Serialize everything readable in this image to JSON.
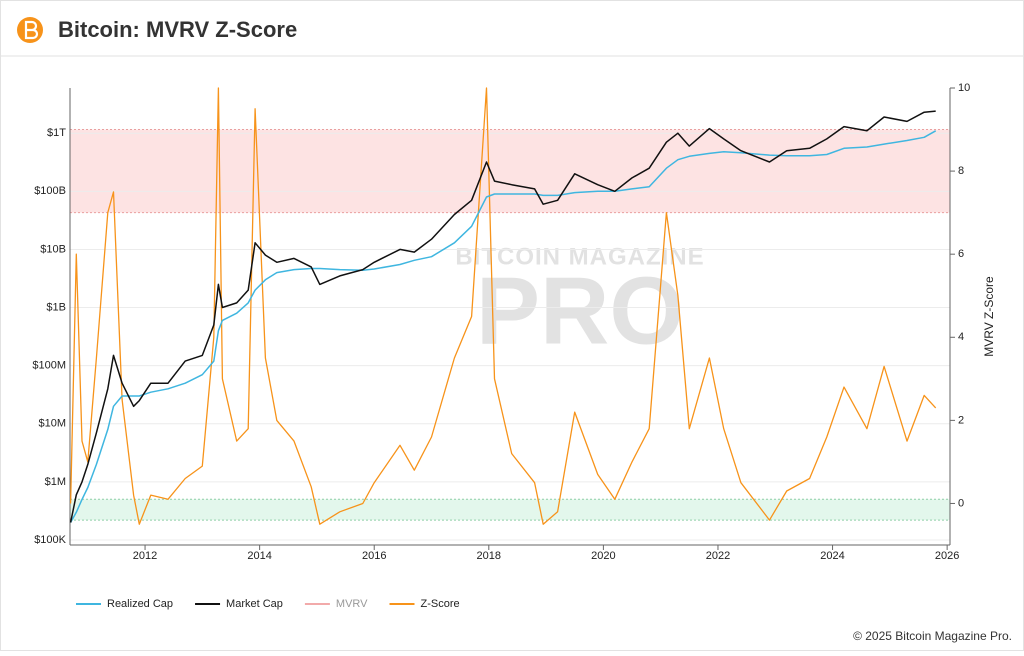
{
  "header": {
    "title": "Bitcoin: MVRV Z-Score"
  },
  "chart_data": {
    "type": "line",
    "x": [
      2010.7,
      2010.8,
      2010.9,
      2011.0,
      2011.15,
      2011.35,
      2011.45,
      2011.6,
      2011.8,
      2011.9,
      2012.1,
      2012.4,
      2012.7,
      2013.0,
      2013.2,
      2013.28,
      2013.35,
      2013.6,
      2013.8,
      2013.92,
      2014.1,
      2014.3,
      2014.6,
      2014.9,
      2015.05,
      2015.4,
      2015.8,
      2016.0,
      2016.45,
      2016.7,
      2017.0,
      2017.4,
      2017.7,
      2017.96,
      2018.1,
      2018.4,
      2018.8,
      2018.95,
      2019.2,
      2019.5,
      2019.9,
      2020.2,
      2020.5,
      2020.8,
      2021.1,
      2021.3,
      2021.5,
      2021.85,
      2022.1,
      2022.4,
      2022.9,
      2023.2,
      2023.6,
      2023.9,
      2024.2,
      2024.6,
      2024.9,
      2025.3,
      2025.6,
      2025.8
    ],
    "series": [
      {
        "name": "Realized Cap",
        "color": "#3fb6e0",
        "values": [
          200000.0,
          300000.0,
          500000.0,
          800000.0,
          2000000.0,
          8000000.0,
          20000000.0,
          30000000.0,
          30000000.0,
          30000000.0,
          35000000.0,
          40000000.0,
          50000000.0,
          70000000.0,
          120000000.0,
          400000000.0,
          600000000.0,
          800000000.0,
          1200000000.0,
          2000000000.0,
          3000000000.0,
          4000000000.0,
          4500000000.0,
          4700000000.0,
          4700000000.0,
          4500000000.0,
          4400000000.0,
          4600000000.0,
          5500000000.0,
          6500000000.0,
          7500000000.0,
          13000000000.0,
          25000000000.0,
          80000000000.0,
          90000000000.0,
          90000000000.0,
          90000000000.0,
          85000000000.0,
          85000000000.0,
          95000000000.0,
          100000000000.0,
          100000000000.0,
          110000000000.0,
          120000000000.0,
          250000000000.0,
          350000000000.0,
          400000000000.0,
          450000000000.0,
          480000000000.0,
          460000000000.0,
          420000000000.0,
          410000000000.0,
          410000000000.0,
          430000000000.0,
          550000000000.0,
          580000000000.0,
          650000000000.0,
          750000000000.0,
          850000000000.0,
          1100000000000.0
        ]
      },
      {
        "name": "Market Cap",
        "color": "#111111",
        "values": [
          200000.0,
          600000.0,
          1000000.0,
          2000000.0,
          7000000.0,
          40000000.0,
          150000000.0,
          50000000.0,
          20000000.0,
          25000000.0,
          50000000.0,
          50000000.0,
          120000000.0,
          150000000.0,
          500000000.0,
          2500000000.0,
          1000000000.0,
          1200000000.0,
          2000000000.0,
          13000000000.0,
          8000000000.0,
          6000000000.0,
          7000000000.0,
          5000000000.0,
          2500000000.0,
          3500000000.0,
          4500000000.0,
          6000000000.0,
          10000000000.0,
          9000000000.0,
          15000000000.0,
          40000000000.0,
          70000000000.0,
          320000000000.0,
          150000000000.0,
          130000000000.0,
          110000000000.0,
          60000000000.0,
          70000000000.0,
          200000000000.0,
          130000000000.0,
          100000000000.0,
          170000000000.0,
          250000000000.0,
          700000000000.0,
          1000000000000.0,
          600000000000.0,
          1200000000000.0,
          800000000000.0,
          500000000000.0,
          320000000000.0,
          500000000000.0,
          550000000000.0,
          800000000000.0,
          1300000000000.0,
          1100000000000.0,
          1900000000000.0,
          1600000000000.0,
          2300000000000.0,
          2400000000000.0
        ]
      },
      {
        "name": "MVRV",
        "color": "#f2aaaa",
        "hidden": true,
        "values": [
          null,
          null,
          null,
          null,
          null,
          null,
          null,
          null,
          null,
          null,
          null,
          null,
          null,
          null,
          null,
          null,
          null,
          null,
          null,
          null,
          null,
          null,
          null,
          null,
          null,
          null,
          null,
          null,
          null,
          null,
          null,
          null,
          null,
          null,
          null,
          null,
          null,
          null,
          null,
          null,
          null,
          null,
          null,
          null,
          null,
          null,
          null,
          null,
          null,
          null,
          null,
          null,
          null,
          null,
          null,
          null,
          null,
          null,
          null,
          null
        ]
      },
      {
        "name": "Z-Score",
        "color": "#f7931a",
        "axis": "y2",
        "values": [
          0,
          6,
          1.5,
          1.0,
          3.5,
          7,
          7.5,
          2.5,
          0.2,
          -0.5,
          0.2,
          0.1,
          0.6,
          0.9,
          4,
          10,
          3,
          1.5,
          1.8,
          9.5,
          3.5,
          2,
          1.5,
          0.4,
          -0.5,
          -0.2,
          0,
          0.5,
          1.4,
          0.8,
          1.6,
          3.5,
          4.5,
          10,
          3,
          1.2,
          0.5,
          -0.5,
          -0.2,
          2.2,
          0.7,
          0.1,
          1.0,
          1.8,
          7,
          5,
          1.8,
          3.5,
          1.8,
          0.5,
          -0.4,
          0.3,
          0.6,
          1.6,
          2.8,
          1.8,
          3.3,
          1.5,
          2.6,
          2.3
        ]
      }
    ],
    "xlim": [
      2010.69,
      2026.05
    ],
    "xticks": [
      2012,
      2014,
      2016,
      2018,
      2020,
      2022,
      2024,
      2026
    ],
    "y_scale": "log",
    "ylim": [
      82000,
      6000000000000.0
    ],
    "yticks": [
      {
        "value": 100000,
        "label": "$100K"
      },
      {
        "value": 1000000,
        "label": "$1M"
      },
      {
        "value": 10000000,
        "label": "$10M"
      },
      {
        "value": 100000000,
        "label": "$100M"
      },
      {
        "value": 1000000000,
        "label": "$1B"
      },
      {
        "value": 10000000000,
        "label": "$10B"
      },
      {
        "value": 100000000000,
        "label": "$100B"
      },
      {
        "value": 1000000000000,
        "label": "$1T"
      }
    ],
    "y2lim": [
      -1,
      10
    ],
    "y2ticks": [
      0,
      2,
      4,
      6,
      8,
      10
    ],
    "y2_label": "MVRV Z-Score",
    "bands": [
      {
        "axis": "y2",
        "from": 7,
        "to": 9,
        "color": "#fde3e3",
        "edge": "#e9a0a0"
      },
      {
        "axis": "y2",
        "from": -0.4,
        "to": 0.1,
        "color": "#e3f7ec",
        "edge": "#8fcfa8"
      }
    ],
    "grid": true,
    "watermark": [
      "BITCOIN MAGAZINE",
      "PRO"
    ]
  },
  "footer": {
    "credit": "© 2025 Bitcoin Magazine Pro."
  }
}
